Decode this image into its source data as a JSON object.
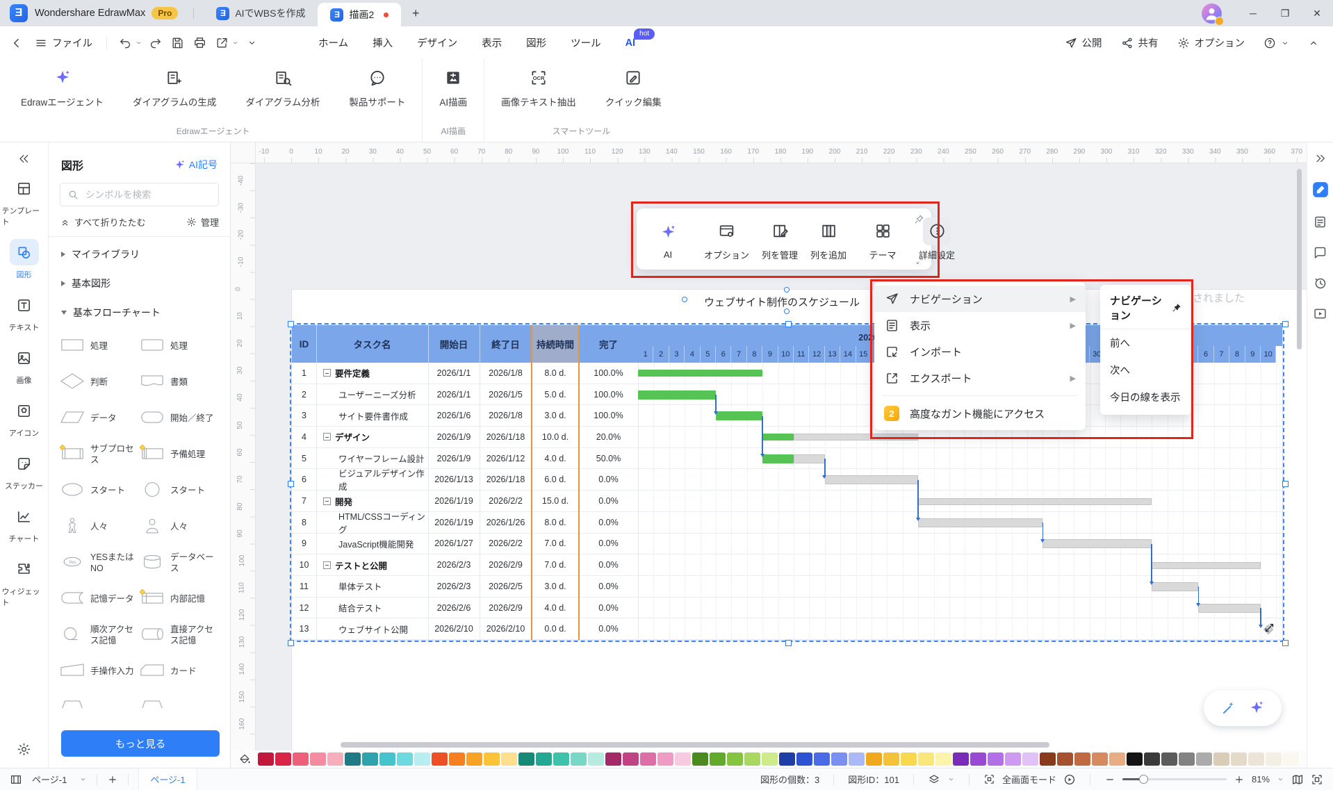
{
  "window": {
    "app_name": "Wondershare EdrawMax",
    "pro_badge": "Pro",
    "doc_tabs": [
      {
        "label": "AIでWBSを作成",
        "active": false,
        "unsaved": false
      },
      {
        "label": "描画2",
        "active": true,
        "unsaved": true
      }
    ]
  },
  "quickbar": {
    "file_label": "ファイル",
    "menu_tabs": [
      {
        "label": "ホーム",
        "active": false
      },
      {
        "label": "挿入",
        "active": false
      },
      {
        "label": "デザイン",
        "active": false
      },
      {
        "label": "表示",
        "active": false
      },
      {
        "label": "図形",
        "active": false
      },
      {
        "label": "ツール",
        "active": false
      },
      {
        "label": "AI",
        "active": true,
        "badge": "hot"
      }
    ],
    "publish_label": "公開",
    "share_label": "共有",
    "options_label": "オプション"
  },
  "ribbon": {
    "groups": [
      {
        "label": "Edrawエージェント",
        "items": [
          {
            "label": "Edrawエージェント",
            "icon": "sparkle"
          },
          {
            "label": "ダイアグラムの生成",
            "icon": "diagGen"
          },
          {
            "label": "ダイアグラム分析",
            "icon": "diagAn"
          },
          {
            "label": "製品サポート",
            "icon": "support"
          }
        ]
      },
      {
        "label": "AI描画",
        "items": [
          {
            "label": "AI描画",
            "icon": "aidraw"
          }
        ]
      },
      {
        "label": "スマートツール",
        "items": [
          {
            "label": "画像テキスト抽出",
            "icon": "ocr"
          },
          {
            "label": "クイック編集",
            "icon": "quickedit"
          }
        ]
      }
    ]
  },
  "left_rail": [
    {
      "label": "テンプレート",
      "icon": "template",
      "active": false
    },
    {
      "label": "図形",
      "icon": "shapesIcon",
      "active": true
    },
    {
      "label": "テキスト",
      "icon": "textIcon",
      "active": false
    },
    {
      "label": "画像",
      "icon": "imageIcon",
      "active": false
    },
    {
      "label": "アイコン",
      "icon": "appicon",
      "active": false
    },
    {
      "label": "ステッカー",
      "icon": "sticker",
      "active": false
    },
    {
      "label": "チャート",
      "icon": "chartIcon",
      "active": false
    },
    {
      "label": "ウィジェット",
      "icon": "widget",
      "active": false
    }
  ],
  "shape_panel": {
    "title": "図形",
    "ai_symbols_label": "AI記号",
    "search_placeholder": "シンボルを検索",
    "collapse_all_label": "すべて折りたたむ",
    "manage_label": "管理",
    "sections": [
      {
        "label": "マイライブラリ",
        "expanded": false
      },
      {
        "label": "基本図形",
        "expanded": false
      },
      {
        "label": "基本フローチャート",
        "expanded": true
      }
    ],
    "shapes": [
      {
        "label": "処理",
        "glyph": "rect"
      },
      {
        "label": "処理",
        "glyph": "rect2"
      },
      {
        "label": "判断",
        "glyph": "diamond"
      },
      {
        "label": "書類",
        "glyph": "document"
      },
      {
        "label": "データ",
        "glyph": "parallelogram"
      },
      {
        "label": "開始／終了",
        "glyph": "stadium"
      },
      {
        "label": "サブプロセス",
        "glyph": "subprocess"
      },
      {
        "label": "予備処理",
        "glyph": "predefined"
      },
      {
        "label": "スタート",
        "glyph": "ellipse"
      },
      {
        "label": "スタート",
        "glyph": "circle"
      },
      {
        "label": "人々",
        "glyph": "person"
      },
      {
        "label": "人々",
        "glyph": "person2"
      },
      {
        "label": "YESまたはNO",
        "glyph": "yesno"
      },
      {
        "label": "データベース",
        "glyph": "database"
      },
      {
        "label": "記憶データ",
        "glyph": "stored"
      },
      {
        "label": "内部記憶",
        "glyph": "internal"
      },
      {
        "label": "順次アクセス記憶",
        "glyph": "seq"
      },
      {
        "label": "直接アクセス記憶",
        "glyph": "direct"
      },
      {
        "label": "手操作入力",
        "glyph": "manual"
      },
      {
        "label": "カード",
        "glyph": "card"
      },
      {
        "label": "",
        "glyph": "trap"
      },
      {
        "label": "",
        "glyph": "trap"
      }
    ],
    "more_label": "もっと見る"
  },
  "canvas": {
    "doc_title": "ウェブサイト制作のスケジュール",
    "toast_text": "されました",
    "h_ruler": {
      "start": -10,
      "end": 370,
      "step": 10
    },
    "v_ruler": {
      "start": -40,
      "end": 160,
      "step": 10
    }
  },
  "gantt": {
    "columns": [
      "ID",
      "タスク名",
      "開始日",
      "終了日",
      "持続時間",
      "完了"
    ],
    "months": [
      "2026年1月",
      "2026年2月"
    ],
    "days_in_january": 31,
    "total_days": 41,
    "tasks": [
      {
        "id": 1,
        "name": "要件定義",
        "group": true,
        "start": "2026/1/1",
        "end": "2026/1/8",
        "duration": "8.0 d.",
        "done": "100.0%",
        "startDay": 1,
        "endDay": 8,
        "pct": 100,
        "milestone": false
      },
      {
        "id": 2,
        "name": "ユーザーニーズ分析",
        "group": false,
        "start": "2026/1/1",
        "end": "2026/1/5",
        "duration": "5.0 d.",
        "done": "100.0%",
        "startDay": 1,
        "endDay": 5,
        "pct": 100,
        "milestone": false
      },
      {
        "id": 3,
        "name": "サイト要件書作成",
        "group": false,
        "start": "2026/1/6",
        "end": "2026/1/8",
        "duration": "3.0 d.",
        "done": "100.0%",
        "startDay": 6,
        "endDay": 8,
        "pct": 100,
        "milestone": false
      },
      {
        "id": 4,
        "name": "デザイン",
        "group": true,
        "start": "2026/1/9",
        "end": "2026/1/18",
        "duration": "10.0 d.",
        "done": "20.0%",
        "startDay": 9,
        "endDay": 18,
        "pct": 20,
        "milestone": false
      },
      {
        "id": 5,
        "name": "ワイヤーフレーム設計",
        "group": false,
        "start": "2026/1/9",
        "end": "2026/1/12",
        "duration": "4.0 d.",
        "done": "50.0%",
        "startDay": 9,
        "endDay": 12,
        "pct": 50,
        "milestone": false
      },
      {
        "id": 6,
        "name": "ビジュアルデザイン作成",
        "group": false,
        "start": "2026/1/13",
        "end": "2026/1/18",
        "duration": "6.0 d.",
        "done": "0.0%",
        "startDay": 13,
        "endDay": 18,
        "pct": 0,
        "milestone": false
      },
      {
        "id": 7,
        "name": "開発",
        "group": true,
        "start": "2026/1/19",
        "end": "2026/2/2",
        "duration": "15.0 d.",
        "done": "0.0%",
        "startDay": 19,
        "endDay": 33,
        "pct": 0,
        "milestone": false
      },
      {
        "id": 8,
        "name": "HTML/CSSコーディング",
        "group": false,
        "start": "2026/1/19",
        "end": "2026/1/26",
        "duration": "8.0 d.",
        "done": "0.0%",
        "startDay": 19,
        "endDay": 26,
        "pct": 0,
        "milestone": false
      },
      {
        "id": 9,
        "name": "JavaScript機能開発",
        "group": false,
        "start": "2026/1/27",
        "end": "2026/2/2",
        "duration": "7.0 d.",
        "done": "0.0%",
        "startDay": 27,
        "endDay": 33,
        "pct": 0,
        "milestone": false
      },
      {
        "id": 10,
        "name": "テストと公開",
        "group": true,
        "start": "2026/2/3",
        "end": "2026/2/9",
        "duration": "7.0 d.",
        "done": "0.0%",
        "startDay": 34,
        "endDay": 40,
        "pct": 0,
        "milestone": false
      },
      {
        "id": 11,
        "name": "単体テスト",
        "group": false,
        "start": "2026/2/3",
        "end": "2026/2/5",
        "duration": "3.0 d.",
        "done": "0.0%",
        "startDay": 34,
        "endDay": 36,
        "pct": 0,
        "milestone": false
      },
      {
        "id": 12,
        "name": "結合テスト",
        "group": false,
        "start": "2026/2/6",
        "end": "2026/2/9",
        "duration": "4.0 d.",
        "done": "0.0%",
        "startDay": 37,
        "endDay": 40,
        "pct": 0,
        "milestone": false
      },
      {
        "id": 13,
        "name": "ウェブサイト公開",
        "group": false,
        "start": "2026/2/10",
        "end": "2026/2/10",
        "duration": "0.0 d.",
        "done": "0.0%",
        "startDay": 41,
        "endDay": 41,
        "pct": 0,
        "milestone": true
      }
    ],
    "connectors": [
      [
        2,
        3
      ],
      [
        3,
        5
      ],
      [
        5,
        6
      ],
      [
        6,
        8
      ],
      [
        8,
        9
      ],
      [
        9,
        11
      ],
      [
        11,
        12
      ],
      [
        12,
        13
      ]
    ],
    "colors": {
      "header": "#7ba6e9",
      "duration_header": "#9fadca",
      "column_highlight_border": "#e8943b",
      "bar_done": "#55c455",
      "bar_remaining": "#d9d9d9",
      "connector": "#2f6fd0"
    }
  },
  "floating_toolbar": {
    "items": [
      {
        "label": "AI",
        "icon": "sparkle",
        "active": false
      },
      {
        "label": "オプション",
        "icon": "optionsCard",
        "active": false
      },
      {
        "label": "列を管理",
        "icon": "manageCols",
        "active": false
      },
      {
        "label": "列を追加",
        "icon": "addCol",
        "active": false
      },
      {
        "label": "テーマ",
        "icon": "themeGrid",
        "active": false
      },
      {
        "label": "詳細設定",
        "icon": "moreCircle",
        "active": true
      }
    ]
  },
  "context_menu": {
    "items": [
      {
        "label": "ナビゲーション",
        "icon": "navIcon",
        "submenu": true,
        "highlighted": true,
        "separated": false
      },
      {
        "label": "表示",
        "icon": "displayDoc",
        "submenu": true,
        "highlighted": false,
        "separated": false
      },
      {
        "label": "インポート",
        "icon": "importIc",
        "submenu": false,
        "highlighted": false,
        "separated": false
      },
      {
        "label": "エクスポート",
        "icon": "exportIc",
        "submenu": true,
        "highlighted": false,
        "separated": false
      },
      {
        "label": "高度なガント機能にアクセス",
        "icon": "edrawProj",
        "submenu": false,
        "highlighted": false,
        "separated": true
      }
    ],
    "submenu": {
      "title": "ナビゲーション",
      "items": [
        "前へ",
        "次へ",
        "今日の線を表示"
      ]
    }
  },
  "statusbar": {
    "page_selector": "ページ-1",
    "page_tab": "ページ-1",
    "shape_count_label": "図形の個数：",
    "shape_count": "3",
    "shape_id_label": "図形ID：",
    "shape_id": "101",
    "fullscreen_label": "全画面モード",
    "zoom_value": "81%"
  },
  "palette": [
    "#c2183b",
    "#d92448",
    "#ee5f7a",
    "#f48ba0",
    "#f6adbc",
    "#1f7a86",
    "#2fa3ad",
    "#46c4cd",
    "#6fd9e0",
    "#b8eef2",
    "#ee4f23",
    "#f57f21",
    "#f8a226",
    "#fbc337",
    "#fddf8e",
    "#168a76",
    "#23a893",
    "#3fc2ab",
    "#79d7c5",
    "#b8ebe0",
    "#a32a66",
    "#c04484",
    "#dd6ea8",
    "#ef9cc5",
    "#f8cae0",
    "#4b8a1f",
    "#63a92c",
    "#85c43f",
    "#a9d861",
    "#cdeb8b",
    "#1e3ea8",
    "#2d53d2",
    "#4a6be5",
    "#7a8fef",
    "#aab8f6",
    "#f0a81c",
    "#f4c238",
    "#f7d84e",
    "#fae779",
    "#fdf4ab",
    "#7a2cb8",
    "#994ad3",
    "#b36fe7",
    "#cd99f1",
    "#e2c0f8",
    "#8a3a1c",
    "#a5512e",
    "#c06a42",
    "#d78a5f",
    "#e9ad85",
    "#141414",
    "#3a3a3a",
    "#5c5c5c",
    "#828282",
    "#ababab",
    "#d9cdb8",
    "#e3dac8",
    "#ece4d6",
    "#f4efe4",
    "#faf7ef"
  ]
}
